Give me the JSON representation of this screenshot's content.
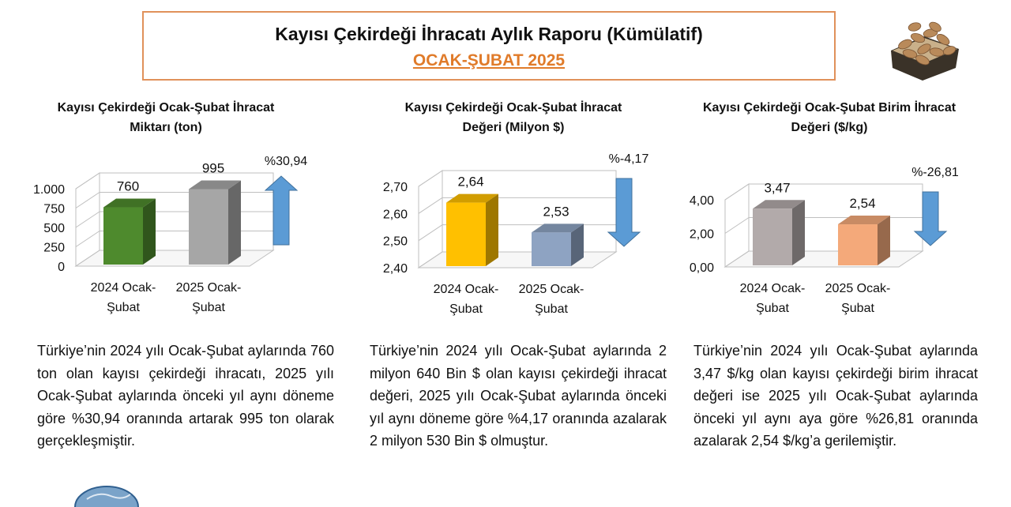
{
  "header": {
    "title": "Kayısı Çekirdeği İhracatı Aylık Raporu (Kümülatif)",
    "subtitle": "OCAK-ŞUBAT 2025"
  },
  "colors": {
    "title_border": "#e0915a",
    "subtitle": "#e07b2a",
    "arrow": "#5b9bd5"
  },
  "icons": {
    "header_image": "apricot-kernels-icon",
    "bottom_logo": "globe-logo-icon"
  },
  "chart_data": [
    {
      "type": "bar",
      "title_line1": "Kayısı Çekirdeği Ocak-Şubat İhracat",
      "title_line2": "Miktarı (ton)",
      "categories": [
        [
          "2024 Ocak-",
          "Şubat"
        ],
        [
          "2025 Ocak-",
          "Şubat"
        ]
      ],
      "values": [
        760,
        995
      ],
      "value_labels": [
        "760",
        "995"
      ],
      "bar_colors": [
        "#4e8a2d",
        "#a6a6a6"
      ],
      "ylim": [
        0,
        1000
      ],
      "yticks": [
        0,
        250,
        500,
        750,
        1000
      ],
      "ytick_labels": [
        "0",
        "250",
        "500",
        "750",
        "1.000"
      ],
      "change_label": "%30,94",
      "change_direction": "up",
      "grid": true
    },
    {
      "type": "bar",
      "title_line1": "Kayısı Çekirdeği Ocak-Şubat İhracat",
      "title_line2": "Değeri (Milyon $)",
      "categories": [
        [
          "2024 Ocak-",
          "Şubat"
        ],
        [
          "2025 Ocak-",
          "Şubat"
        ]
      ],
      "values": [
        2.64,
        2.53
      ],
      "value_labels": [
        "2,64",
        "2,53"
      ],
      "bar_colors": [
        "#ffc000",
        "#8ea3c2"
      ],
      "ylim": [
        2.4,
        2.7
      ],
      "yticks": [
        2.4,
        2.5,
        2.6,
        2.7
      ],
      "ytick_labels": [
        "2,40",
        "2,50",
        "2,60",
        "2,70"
      ],
      "change_label": "%-4,17",
      "change_direction": "down",
      "grid": true
    },
    {
      "type": "bar",
      "title_line1": "Kayısı Çekirdeği Ocak-Şubat Birim İhracat",
      "title_line2": "Değeri  ($/kg)",
      "categories": [
        [
          "2024 Ocak-",
          "Şubat"
        ],
        [
          "2025 Ocak-",
          "Şubat"
        ]
      ],
      "values": [
        3.47,
        2.54
      ],
      "value_labels": [
        "3,47",
        "2,54"
      ],
      "bar_colors": [
        "#b2aaaa",
        "#f4a97a"
      ],
      "ylim": [
        0,
        4
      ],
      "yticks": [
        0,
        2,
        4
      ],
      "ytick_labels": [
        "0,00",
        "2,00",
        "4,00"
      ],
      "change_label": "%-26,81",
      "change_direction": "down",
      "grid": true
    }
  ],
  "paragraphs": [
    "Türkiye’nin 2024 yılı Ocak-Şubat aylarında 760 ton olan kayısı çekirdeği ihracatı, 2025 yılı Ocak-Şubat aylarında önceki yıl aynı döneme göre %30,94 oranında artarak 995 ton olarak gerçekleşmiştir.",
    "Türkiye’nin 2024 yılı Ocak-Şubat aylarında 2 milyon 640 Bin $ olan kayısı çekirdeği ihracat değeri, 2025 yılı Ocak-Şubat aylarında önceki yıl aynı döneme göre %4,17 oranında azalarak 2 milyon 530 Bin $ olmuştur.",
    "Türkiye’nin 2024 yılı Ocak-Şubat aylarında 3,47 $/kg olan kayısı çekirdeği birim ihracat değeri ise 2025 yılı Ocak-Şubat aylarında önceki yıl aynı aya göre %26,81 oranında azalarak 2,54 $/kg’a gerilemiştir."
  ]
}
